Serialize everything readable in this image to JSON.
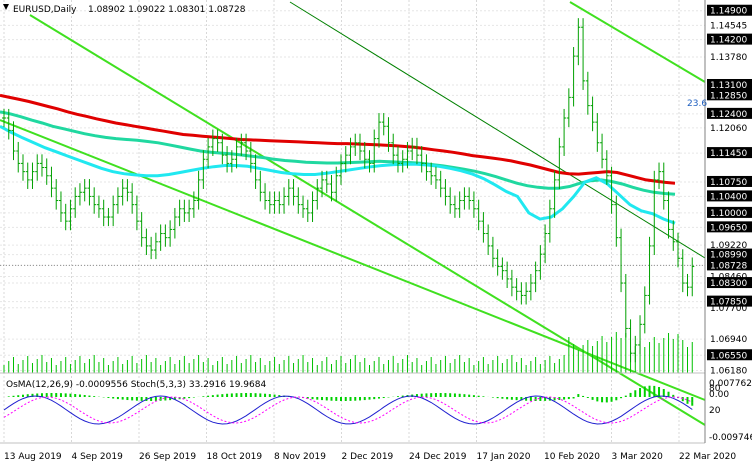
{
  "header": {
    "symbol": "EURUSD,Daily",
    "ohlc": "1.08902 1.09022 1.08301 1.08728"
  },
  "subwindow": {
    "label": "OsMA(12,26,9) -0.0009556  Stoch(5,3,3) 33.2916 19.9684",
    "scale_top": "0.0077625",
    "scale_zero": "0.00",
    "scale_bottom": "-0.009746",
    "stoch_80": "80",
    "stoch_20": "20"
  },
  "fib_label": "23.6",
  "colors": {
    "candle": "#00a000",
    "ma_red": "#e00000",
    "ma_teal": "#20d8a0",
    "ma_cyan": "#20e8f0",
    "channel": "#40e020",
    "trendline": "#008000",
    "volume": "#00c000",
    "label_bg": "#000000",
    "current_bg": "#000000",
    "osma": "#00d000",
    "stoch_main": "#2020d0",
    "stoch_signal": "#ff00ff"
  },
  "chart_data": {
    "type": "candlestick",
    "title": "EURUSD,Daily",
    "price_axis_labels": [
      "1.14900",
      "1.14545",
      "1.14200",
      "1.13780",
      "1.13100",
      "1.12850",
      "1.12400",
      "1.12060",
      "1.11450",
      "1.10750",
      "1.10400",
      "1.10000",
      "1.09650",
      "1.09220",
      "1.08990",
      "1.08728",
      "1.08460",
      "1.08300",
      "1.07850",
      "1.07700",
      "1.06940",
      "1.06550",
      "1.06180"
    ],
    "highlighted_price_labels": [
      "1.14900",
      "1.14200",
      "1.13100",
      "1.12850",
      "1.12400",
      "1.11450",
      "1.10750",
      "1.10400",
      "1.10000",
      "1.09650",
      "1.08990",
      "1.08728",
      "1.08300",
      "1.07850",
      "1.06550"
    ],
    "current_price": "1.08728",
    "date_axis_labels": [
      "13 Aug 2019",
      "4 Sep 2019",
      "26 Sep 2019",
      "18 Oct 2019",
      "8 Nov 2019",
      "2 Dec 2019",
      "24 Dec 2019",
      "17 Jan 2020",
      "10 Feb 2020",
      "3 Mar 2020",
      "22 Mar 2020"
    ],
    "ylim": [
      1.0612,
      1.1516
    ],
    "close_series": [
      1.123,
      1.12,
      1.115,
      1.112,
      1.11,
      1.108,
      1.11,
      1.112,
      1.111,
      1.109,
      1.106,
      1.103,
      1.1,
      1.098,
      1.101,
      1.104,
      1.105,
      1.106,
      1.104,
      1.102,
      1.101,
      1.099,
      1.099,
      1.102,
      1.104,
      1.106,
      1.105,
      1.102,
      1.098,
      1.094,
      1.092,
      1.091,
      1.093,
      1.095,
      1.094,
      1.096,
      1.099,
      1.101,
      1.1,
      1.101,
      1.103,
      1.108,
      1.113,
      1.116,
      1.118,
      1.117,
      1.114,
      1.112,
      1.113,
      1.116,
      1.117,
      1.115,
      1.112,
      1.108,
      1.105,
      1.103,
      1.102,
      1.103,
      1.102,
      1.104,
      1.106,
      1.104,
      1.102,
      1.101,
      1.1,
      1.103,
      1.106,
      1.108,
      1.107,
      1.105,
      1.109,
      1.112,
      1.114,
      1.116,
      1.117,
      1.115,
      1.113,
      1.112,
      1.118,
      1.122,
      1.121,
      1.117,
      1.114,
      1.112,
      1.113,
      1.115,
      1.116,
      1.114,
      1.112,
      1.11,
      1.109,
      1.108,
      1.106,
      1.104,
      1.102,
      1.101,
      1.103,
      1.104,
      1.103,
      1.101,
      1.098,
      1.095,
      1.092,
      1.089,
      1.087,
      1.086,
      1.084,
      1.082,
      1.081,
      1.08,
      1.081,
      1.083,
      1.086,
      1.09,
      1.095,
      1.101,
      1.108,
      1.116,
      1.123,
      1.128,
      1.138,
      1.145,
      1.132,
      1.126,
      1.122,
      1.117,
      1.113,
      1.109,
      1.102,
      1.094,
      1.083,
      1.072,
      1.066,
      1.068,
      1.073,
      1.08,
      1.092,
      1.108,
      1.11,
      1.103,
      1.096,
      1.093,
      1.089,
      1.083,
      1.082,
      1.087
    ],
    "moving_averages": [
      {
        "color": "red",
        "values": [
          1.1285,
          1.128,
          1.1275,
          1.127,
          1.1264,
          1.1258,
          1.1252,
          1.1245,
          1.1239,
          1.1234,
          1.1228,
          1.1223,
          1.1218,
          1.1214,
          1.121,
          1.1206,
          1.1202,
          1.1198,
          1.1194,
          1.119,
          1.1188,
          1.1186,
          1.1184,
          1.1182,
          1.118,
          1.1178,
          1.1177,
          1.1176,
          1.1175,
          1.1174,
          1.1173,
          1.1172,
          1.1171,
          1.117,
          1.1169,
          1.1168,
          1.1168,
          1.1167,
          1.1166,
          1.1165,
          1.1164,
          1.1163,
          1.1161,
          1.1159,
          1.1156,
          1.1153,
          1.115,
          1.1147,
          1.1143,
          1.1139,
          1.1136,
          1.1133,
          1.113,
          1.1126,
          1.1121,
          1.1116,
          1.111,
          1.1104,
          1.1098,
          1.1095,
          1.1094,
          1.1096,
          1.1098,
          1.11,
          1.1098,
          1.1092,
          1.1086,
          1.108,
          1.1077,
          1.1074,
          1.1072
        ]
      },
      {
        "color": "teal",
        "values": [
          1.1245,
          1.124,
          1.1233,
          1.1225,
          1.1218,
          1.121,
          1.1204,
          1.1198,
          1.1192,
          1.1187,
          1.1183,
          1.118,
          1.1178,
          1.1176,
          1.1173,
          1.117,
          1.1165,
          1.116,
          1.1155,
          1.115,
          1.1147,
          1.1145,
          1.1143,
          1.114,
          1.1137,
          1.1134,
          1.113,
          1.1127,
          1.1125,
          1.1123,
          1.1122,
          1.1121,
          1.1121,
          1.1122,
          1.1123,
          1.1124,
          1.1125,
          1.1124,
          1.1123,
          1.1122,
          1.112,
          1.1117,
          1.1114,
          1.111,
          1.1106,
          1.1101,
          1.1095,
          1.1088,
          1.108,
          1.1072,
          1.1066,
          1.1062,
          1.106,
          1.106,
          1.1064,
          1.1072,
          1.1078,
          1.108,
          1.1076,
          1.107,
          1.1062,
          1.1055,
          1.105,
          1.1047,
          1.1045
        ]
      },
      {
        "color": "cyan",
        "values": [
          1.121,
          1.1195,
          1.1182,
          1.117,
          1.1158,
          1.1148,
          1.1138,
          1.1128,
          1.1118,
          1.1108,
          1.11,
          1.1095,
          1.1092,
          1.109,
          1.109,
          1.1093,
          1.1098,
          1.1103,
          1.1108,
          1.1112,
          1.1115,
          1.1115,
          1.1113,
          1.1108,
          1.1103,
          1.1098,
          1.1095,
          1.1093,
          1.1093,
          1.1096,
          1.11,
          1.1104,
          1.1108,
          1.1112,
          1.1115,
          1.1117,
          1.1118,
          1.1118,
          1.1116,
          1.1113,
          1.1108,
          1.1102,
          1.1094,
          1.1083,
          1.1068,
          1.1052,
          1.104,
          1.1,
          1.0985,
          1.099,
          1.101,
          1.104,
          1.1075,
          1.1085,
          1.107,
          1.1045,
          1.102,
          1.1005,
          1.0998,
          1.0985,
          1.0975
        ]
      }
    ],
    "indicators": {
      "osma": {
        "params": "12,26,9",
        "value": -0.0009556
      },
      "stochastic": {
        "params": "5,3,3",
        "main": 33.2916,
        "signal": 19.9684
      }
    },
    "grid": true
  }
}
